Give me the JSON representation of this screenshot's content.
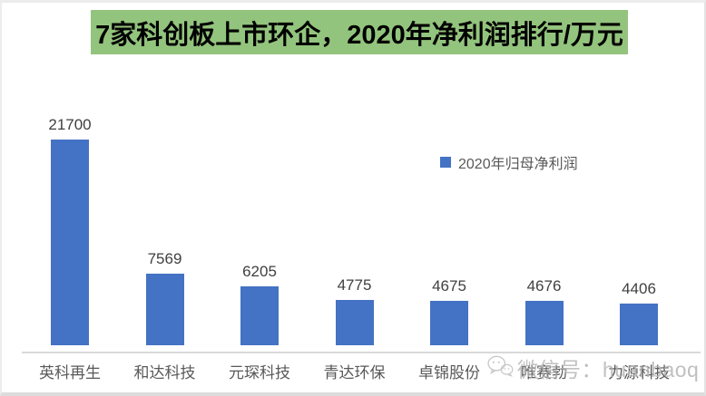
{
  "title": {
    "text": "7家科创板上市环企，2020年净利润排行/万元",
    "bg_color": "#93c47d",
    "text_color": "#000000"
  },
  "legend": {
    "label": "2020年归母净利润",
    "marker_color": "#4472c4"
  },
  "watermark": {
    "icon": "wechat-icon",
    "text": "微信号：huanbaoq",
    "color": "#b3b3b3"
  },
  "colors": {
    "bar": "#4472c4",
    "axis_line": "#d9d9d9",
    "value_label": "#404040",
    "category_label": "#595959",
    "title_background": "#93c47d"
  },
  "chart_data": {
    "type": "bar",
    "title": "7家科创板上市环企，2020年净利润排行/万元",
    "unit": "万元",
    "categories": [
      "英科再生",
      "和达科技",
      "元琛科技",
      "青达环保",
      "卓锦股份",
      "唯赛勃",
      "力源科技"
    ],
    "values": [
      21700,
      7569,
      6205,
      4775,
      4675,
      4676,
      4406
    ],
    "series_name": "2020年归母净利润",
    "xlabel": "",
    "ylabel": "",
    "ylim": [
      0,
      22500
    ],
    "data_labels": true,
    "gridlines": false,
    "y_axis_visible": false,
    "x_axis_line": true,
    "legend_position": "inside-top-right"
  }
}
